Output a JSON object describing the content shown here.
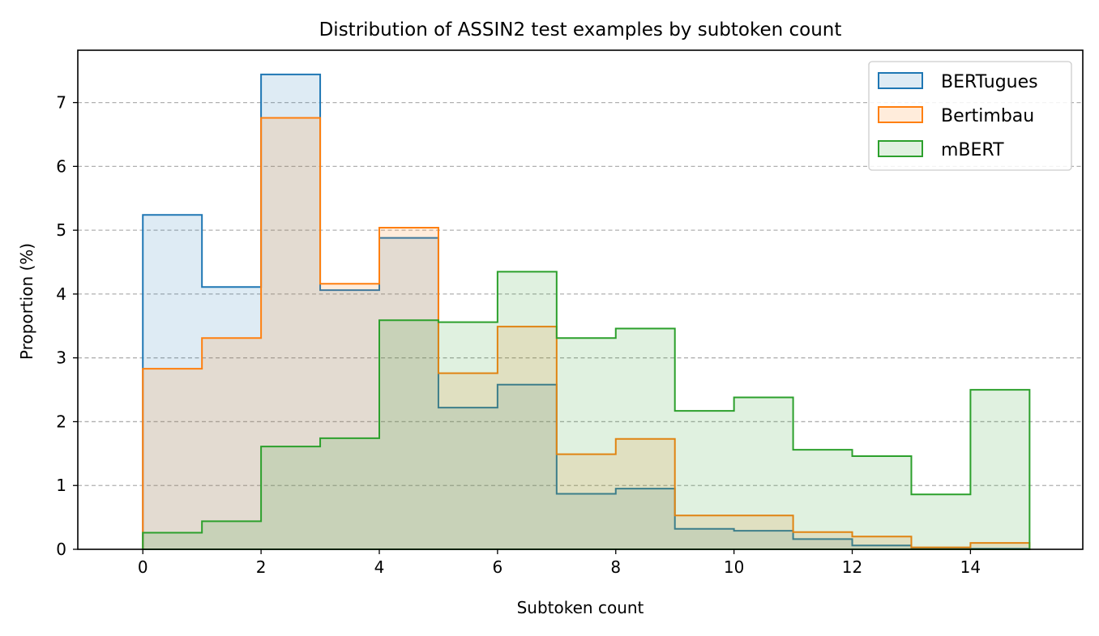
{
  "chart_data": {
    "type": "histogram-step",
    "title": "Distribution of ASSIN2 test examples by subtoken count",
    "xlabel": "Subtoken count",
    "ylabel": "Proportion (%)",
    "xlim": [
      -1.1,
      15.9
    ],
    "ylim": [
      0,
      7.82
    ],
    "bin_edges": [
      0,
      1,
      2,
      3,
      4,
      5,
      6,
      7,
      8,
      9,
      10,
      11,
      12,
      13,
      14,
      15
    ],
    "x_ticks": [
      0,
      2,
      4,
      6,
      8,
      10,
      12,
      14
    ],
    "x_tick_labels": [
      "0",
      "2",
      "4",
      "6",
      "8",
      "10",
      "12",
      "14"
    ],
    "y_ticks": [
      0,
      1,
      2,
      3,
      4,
      5,
      6,
      7
    ],
    "y_tick_labels": [
      "0",
      "1",
      "2",
      "3",
      "4",
      "5",
      "6",
      "7"
    ],
    "grid": "y-dashed",
    "legend_position": "top-right",
    "series": [
      {
        "name": "BERTugues",
        "color": "#1f77b4",
        "values": [
          5.24,
          4.11,
          7.44,
          4.06,
          4.88,
          2.22,
          2.58,
          0.87,
          0.95,
          0.32,
          0.29,
          0.16,
          0.06,
          0.02,
          0.01
        ]
      },
      {
        "name": "Bertimbau",
        "color": "#ff7f0e",
        "values": [
          2.83,
          3.31,
          6.76,
          4.16,
          5.04,
          2.76,
          3.49,
          1.49,
          1.73,
          0.53,
          0.53,
          0.27,
          0.2,
          0.03,
          0.1
        ]
      },
      {
        "name": "mBERT",
        "color": "#2ca02c",
        "values": [
          0.26,
          0.44,
          1.61,
          1.74,
          3.59,
          3.56,
          4.35,
          3.31,
          3.46,
          2.17,
          2.38,
          1.56,
          1.46,
          0.86,
          2.5
        ]
      }
    ]
  }
}
